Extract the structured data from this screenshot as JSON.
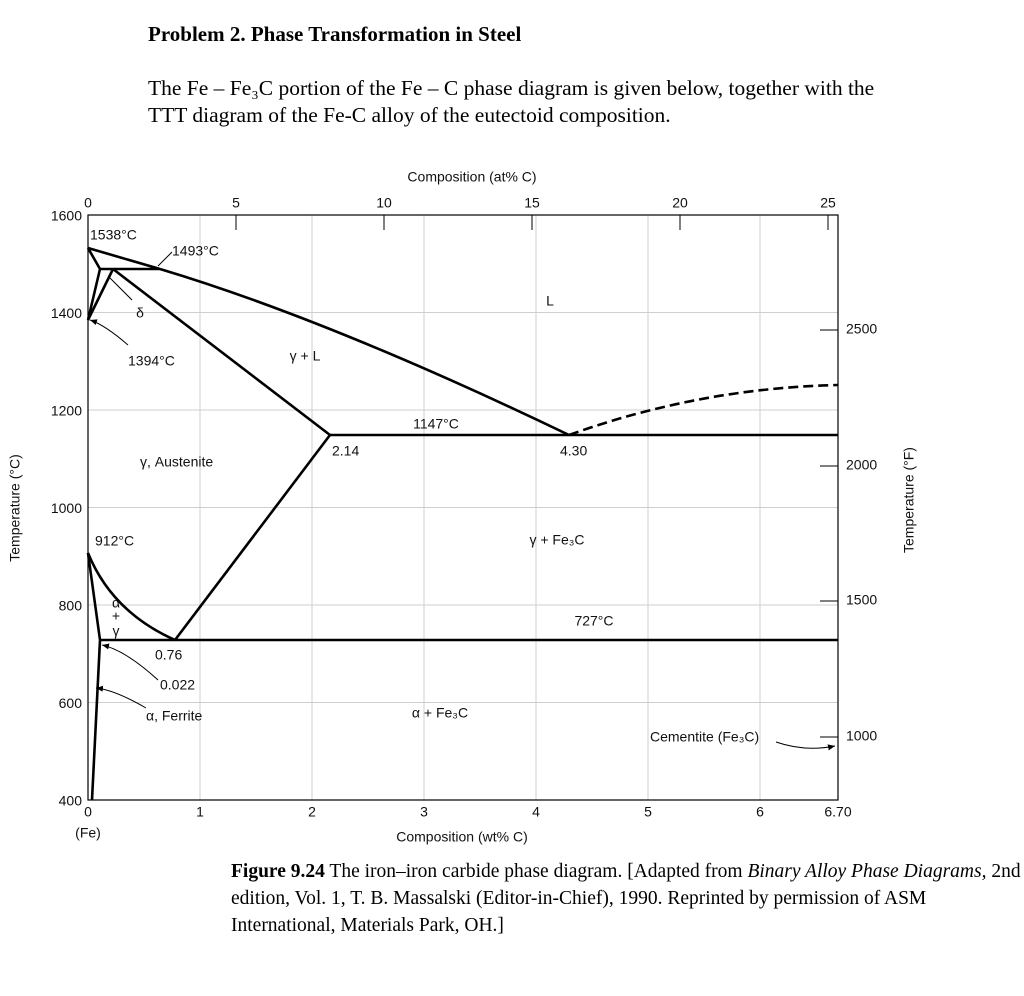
{
  "header": {
    "title": "Problem 2. Phase Transformation in Steel"
  },
  "body": {
    "paragraph": "The Fe – Fe₃C portion of the Fe – C phase diagram is given below, together with the TTT diagram of the Fe-C alloy of the eutectoid composition."
  },
  "figure": {
    "top_axis": {
      "title": "Composition (at% C)",
      "ticks": [
        "0",
        "5",
        "10",
        "15",
        "20",
        "25"
      ]
    },
    "bottom_axis": {
      "title": "Composition (wt% C)",
      "ticks": [
        "0",
        "1",
        "2",
        "3",
        "4",
        "5",
        "6",
        "6.70"
      ],
      "fe_label": "(Fe)"
    },
    "left_axis": {
      "title": "Temperature (°C)",
      "ticks": [
        "1600",
        "1400",
        "1200",
        "1000",
        "800",
        "600",
        "400"
      ]
    },
    "right_axis": {
      "title": "Temperature (°F)",
      "ticks": [
        "2500",
        "2000",
        "1500",
        "1000"
      ]
    },
    "annotations": [
      "1538°C",
      "1493°C",
      "δ",
      "1394°C",
      "γ + L",
      "L",
      "1147°C",
      "2.14",
      "4.30",
      "γ, Austenite",
      "912°C",
      "γ + Fe₃C",
      "α",
      "+",
      "γ",
      "727°C",
      "0.76",
      "0.022",
      "α, Ferrite",
      "α + Fe₃C",
      "Cementite (Fe₃C)"
    ]
  },
  "caption": {
    "label": "Figure 9.24",
    "text1": " The iron–iron carbide phase diagram. [Adapted from ",
    "italic1": "Binary Alloy Phase Diagrams,",
    "text2": " 2nd edition, Vol. 1, T. B. Massalski (Editor-in-Chief), 1990. Reprinted by permission of ASM International, Materials Park, OH.]"
  }
}
